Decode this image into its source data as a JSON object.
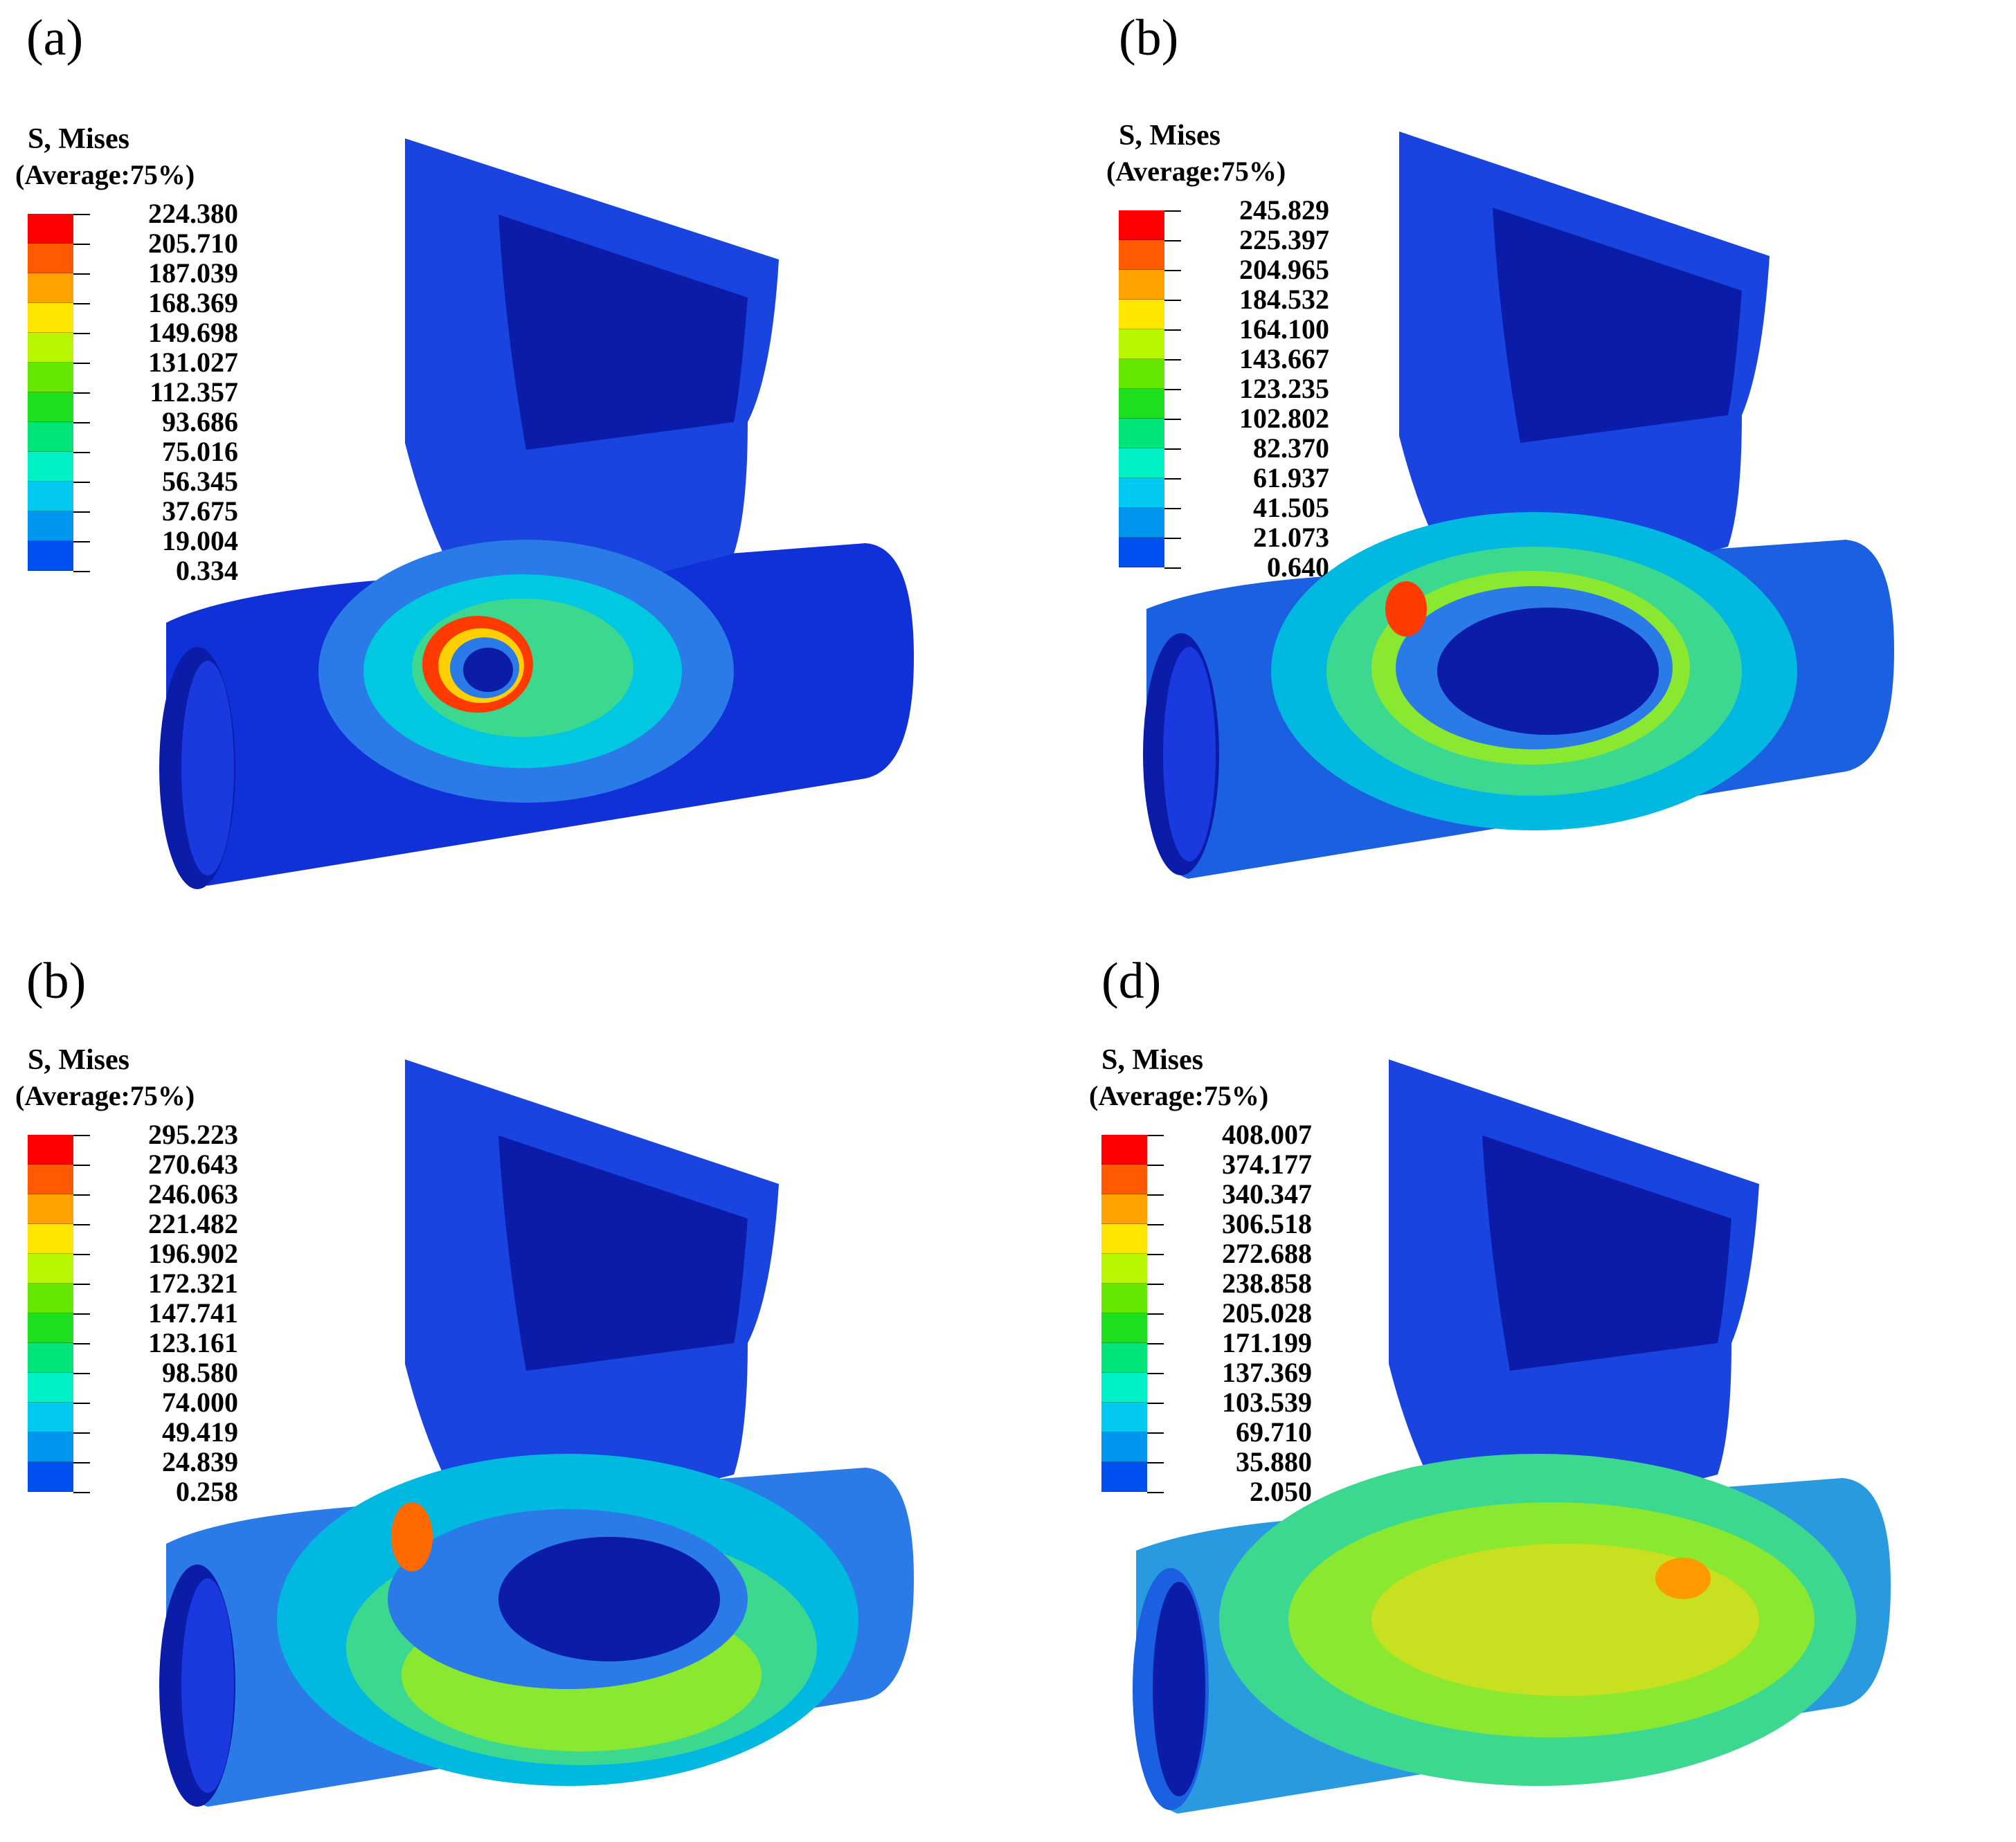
{
  "panels": [
    {
      "label": "(a)",
      "legend_title": "S, Mises",
      "legend_subtitle": "(Average:75%)",
      "legend_values": [
        "224.380",
        "205.710",
        "187.039",
        "168.369",
        "149.698",
        "131.027",
        "112.357",
        "93.686",
        "75.016",
        "56.345",
        "37.675",
        "19.004",
        "0.334"
      ]
    },
    {
      "label": "(b)",
      "legend_title": "S, Mises",
      "legend_subtitle": "(Average:75%)",
      "legend_values": [
        "245.829",
        "225.397",
        "204.965",
        "184.532",
        "164.100",
        "143.667",
        "123.235",
        "102.802",
        "82.370",
        "61.937",
        "41.505",
        "21.073",
        "0.640"
      ]
    },
    {
      "label": "(b)",
      "legend_title": "S, Mises",
      "legend_subtitle": "(Average:75%)",
      "legend_values": [
        "295.223",
        "270.643",
        "246.063",
        "221.482",
        "196.902",
        "172.321",
        "147.741",
        "123.161",
        "98.580",
        "74.000",
        "49.419",
        "24.839",
        "0.258"
      ]
    },
    {
      "label": "(d)",
      "legend_title": "S, Mises",
      "legend_subtitle": "(Average:75%)",
      "legend_values": [
        "408.007",
        "374.177",
        "340.347",
        "306.518",
        "272.688",
        "238.858",
        "205.028",
        "171.199",
        "137.369",
        "103.539",
        "69.710",
        "35.880",
        "2.050"
      ]
    }
  ],
  "colors": {
    "colormap": [
      "#ff0000",
      "#ff5a00",
      "#ffa200",
      "#ffe600",
      "#b8f500",
      "#64e800",
      "#1ee01e",
      "#00e57a",
      "#00f0c8",
      "#00c8f0",
      "#0096f0",
      "#0050f0",
      "#0000ff"
    ],
    "pipe_base": "#1030d8",
    "pipe_dark": "#0a1ca8",
    "pipe_light": "#2a62e6"
  }
}
